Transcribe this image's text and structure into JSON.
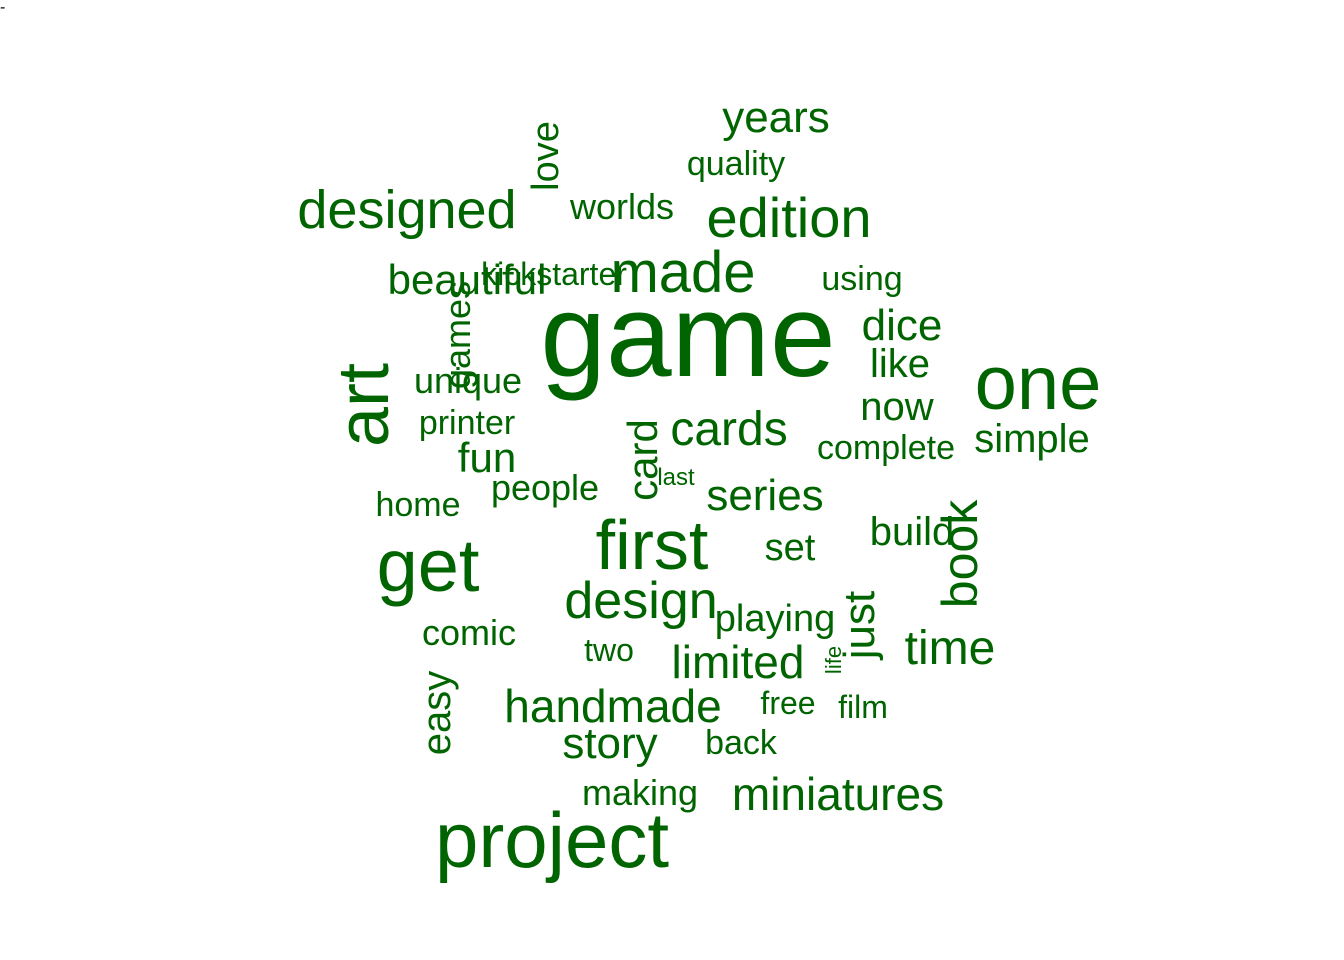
{
  "word_cloud": {
    "color": "#006400",
    "words": [
      {
        "text": "game",
        "weight": 100,
        "rotated": false
      },
      {
        "text": "project",
        "weight": 75,
        "rotated": false
      },
      {
        "text": "one",
        "weight": 72,
        "rotated": false
      },
      {
        "text": "get",
        "weight": 72,
        "rotated": false
      },
      {
        "text": "first",
        "weight": 70,
        "rotated": false
      },
      {
        "text": "art",
        "weight": 68,
        "rotated": true
      },
      {
        "text": "made",
        "weight": 58,
        "rotated": false
      },
      {
        "text": "edition",
        "weight": 56,
        "rotated": false
      },
      {
        "text": "designed",
        "weight": 55,
        "rotated": false
      },
      {
        "text": "design",
        "weight": 52,
        "rotated": false
      },
      {
        "text": "book",
        "weight": 52,
        "rotated": true
      },
      {
        "text": "cards",
        "weight": 48,
        "rotated": false
      },
      {
        "text": "time",
        "weight": 48,
        "rotated": false
      },
      {
        "text": "dice",
        "weight": 46,
        "rotated": false
      },
      {
        "text": "series",
        "weight": 46,
        "rotated": false
      },
      {
        "text": "limited",
        "weight": 46,
        "rotated": false
      },
      {
        "text": "just",
        "weight": 46,
        "rotated": true
      },
      {
        "text": "handmade",
        "weight": 46,
        "rotated": false
      },
      {
        "text": "miniatures",
        "weight": 46,
        "rotated": false
      },
      {
        "text": "story",
        "weight": 44,
        "rotated": false
      },
      {
        "text": "years",
        "weight": 44,
        "rotated": false
      },
      {
        "text": "fun",
        "weight": 42,
        "rotated": false
      },
      {
        "text": "card",
        "weight": 42,
        "rotated": true
      },
      {
        "text": "easy",
        "weight": 42,
        "rotated": true
      },
      {
        "text": "simple",
        "weight": 42,
        "rotated": false
      },
      {
        "text": "beautiful",
        "weight": 42,
        "rotated": false
      },
      {
        "text": "like",
        "weight": 42,
        "rotated": false
      },
      {
        "text": "now",
        "weight": 40,
        "rotated": false
      },
      {
        "text": "build",
        "weight": 40,
        "rotated": false
      },
      {
        "text": "love",
        "weight": 40,
        "rotated": true
      },
      {
        "text": "playing",
        "weight": 40,
        "rotated": false
      },
      {
        "text": "set",
        "weight": 40,
        "rotated": false
      },
      {
        "text": "people",
        "weight": 40,
        "rotated": false
      },
      {
        "text": "games",
        "weight": 38,
        "rotated": true
      },
      {
        "text": "unique",
        "weight": 38,
        "rotated": false
      },
      {
        "text": "comic",
        "weight": 38,
        "rotated": false
      },
      {
        "text": "making",
        "weight": 38,
        "rotated": false
      },
      {
        "text": "worlds",
        "weight": 38,
        "rotated": false
      },
      {
        "text": "quality",
        "weight": 38,
        "rotated": false
      },
      {
        "text": "complete",
        "weight": 36,
        "rotated": false
      },
      {
        "text": "printer",
        "weight": 36,
        "rotated": false
      },
      {
        "text": "back",
        "weight": 36,
        "rotated": false
      },
      {
        "text": "using",
        "weight": 36,
        "rotated": false
      },
      {
        "text": "home",
        "weight": 36,
        "rotated": false
      },
      {
        "text": "kickstarter",
        "weight": 36,
        "rotated": false
      },
      {
        "text": "two",
        "weight": 34,
        "rotated": false
      },
      {
        "text": "free",
        "weight": 34,
        "rotated": false
      },
      {
        "text": "film",
        "weight": 34,
        "rotated": false
      },
      {
        "text": "last",
        "weight": 34,
        "rotated": false
      },
      {
        "text": "life",
        "weight": 30,
        "rotated": true
      },
      {
        "text": "-",
        "weight": 20,
        "rotated": false
      }
    ]
  }
}
